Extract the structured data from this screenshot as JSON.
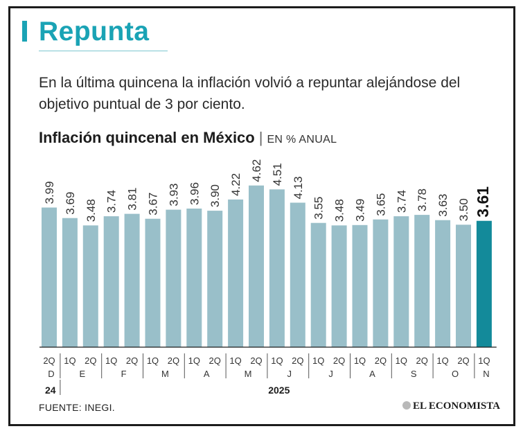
{
  "headline": "Repunta",
  "subtitle": "En la última quincena la inflación volvió a repuntar alejándose del objetivo puntual de 3 por ciento.",
  "chart_title": "Inflación quincenal en México",
  "chart_unit": "EN % ANUAL",
  "source": "FUENTE: INEGI.",
  "brand": "EL ECONOMISTA",
  "colors": {
    "bar": "#99bfc9",
    "highlight": "#138a9a",
    "accent": "#1aa3b5",
    "text": "#1c1c1c"
  },
  "chart_data": {
    "type": "bar",
    "title": "Inflación quincenal en México",
    "ylabel": "EN % ANUAL",
    "xlabel": "",
    "ylim": [
      0,
      5.05
    ],
    "categories": [
      "2Q",
      "1Q",
      "2Q",
      "1Q",
      "2Q",
      "1Q",
      "2Q",
      "1Q",
      "2Q",
      "1Q",
      "2Q",
      "1Q",
      "2Q",
      "1Q",
      "2Q",
      "1Q",
      "2Q",
      "1Q",
      "2Q",
      "1Q",
      "2Q",
      "1Q"
    ],
    "values": [
      3.99,
      3.69,
      3.48,
      3.74,
      3.81,
      3.67,
      3.93,
      3.96,
      3.9,
      4.22,
      4.62,
      4.51,
      4.13,
      3.55,
      3.48,
      3.49,
      3.65,
      3.74,
      3.78,
      3.63,
      3.5,
      3.61
    ],
    "value_labels": [
      "3.99",
      "3.69",
      "3.48",
      "3.74",
      "3.81",
      "3.67",
      "3.93",
      "3.96",
      "3.90",
      "4.22",
      "4.62",
      "4.51",
      "4.13",
      "3.55",
      "3.48",
      "3.49",
      "3.65",
      "3.74",
      "3.78",
      "3.63",
      "3.50",
      "3.61"
    ],
    "highlight_index": 21,
    "months": [
      {
        "label": "D",
        "span": 1
      },
      {
        "label": "E",
        "span": 2
      },
      {
        "label": "F",
        "span": 2
      },
      {
        "label": "M",
        "span": 2
      },
      {
        "label": "A",
        "span": 2
      },
      {
        "label": "M",
        "span": 2
      },
      {
        "label": "J",
        "span": 2
      },
      {
        "label": "J",
        "span": 2
      },
      {
        "label": "A",
        "span": 2
      },
      {
        "label": "S",
        "span": 2
      },
      {
        "label": "O",
        "span": 2
      },
      {
        "label": "N",
        "span": 1
      }
    ],
    "years": [
      {
        "label": "24",
        "span": 1
      },
      {
        "label": "2025",
        "span": 21
      }
    ]
  }
}
